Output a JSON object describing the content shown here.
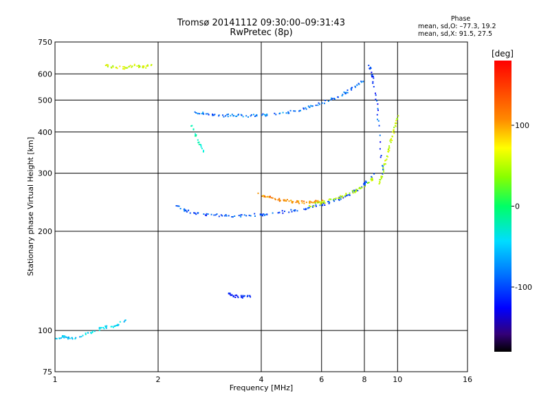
{
  "header": {
    "title_line1": "Tromsø 20141112 09:30:00–09:31:43",
    "title_line2": "RwPretec (8p)",
    "phase_label": "Phase",
    "phase_o": "mean, sd,O: –77.3, 19.2",
    "phase_x": "mean, sd,X:  91.5, 27.5"
  },
  "chart_data": {
    "type": "scatter",
    "xlabel": "Frequency [MHz]",
    "ylabel": "Stationary phase Virtual Height [km]",
    "x_scale": "log",
    "y_scale": "log",
    "xlim": [
      1,
      16
    ],
    "ylim": [
      75,
      750
    ],
    "x_ticks": [
      1,
      2,
      4,
      6,
      8,
      10,
      16
    ],
    "y_ticks": [
      75,
      100,
      200,
      300,
      400,
      500,
      600,
      750
    ],
    "grid": true,
    "colorbar": {
      "label": "[deg]",
      "min": -180,
      "max": 180,
      "ticks": [
        100,
        0,
        -100
      ]
    },
    "traces": [
      {
        "x": [
          2.55,
          2.75,
          3.0,
          3.3,
          3.6,
          4.0,
          4.5,
          5.0,
          5.5,
          6.0,
          6.5,
          7.0,
          7.5,
          7.9
        ],
        "y": [
          462,
          456,
          452,
          450,
          450,
          452,
          457,
          465,
          478,
          492,
          508,
          528,
          550,
          572
        ],
        "phase": -85
      },
      {
        "x": [
          2.25,
          2.4,
          2.6,
          2.9,
          3.2,
          3.6,
          4.0,
          4.5,
          5.0,
          5.5,
          6.0,
          6.5,
          7.0,
          7.5,
          8.0,
          8.5
        ],
        "y": [
          240,
          232,
          228,
          225,
          224,
          224,
          226,
          229,
          233,
          237,
          242,
          248,
          256,
          266,
          280,
          300
        ],
        "phase": -95
      },
      {
        "x": [
          3.9,
          4.2,
          4.5,
          4.8,
          5.1,
          5.4,
          5.7,
          6.0
        ],
        "y": [
          262,
          255,
          250,
          248,
          246,
          246,
          247,
          249
        ],
        "phase": 135
      },
      {
        "x": [
          5.5,
          6.0,
          6.5,
          7.0,
          7.5,
          8.0,
          8.4
        ],
        "y": [
          240,
          245,
          252,
          258,
          266,
          275,
          290
        ],
        "phase": 85
      },
      {
        "x": [
          8.8,
          9.0,
          9.2,
          9.4,
          9.6,
          9.8,
          10.0
        ],
        "y": [
          280,
          300,
          330,
          360,
          390,
          420,
          450
        ],
        "phase": 90
      },
      {
        "x": [
          8.2,
          8.4,
          8.6,
          8.8,
          9.0
        ],
        "y": [
          640,
          600,
          520,
          420,
          300
        ],
        "phase": -100
      },
      {
        "x": [
          1.4,
          1.5,
          1.6,
          1.7,
          1.8,
          1.9
        ],
        "y": [
          640,
          630,
          630,
          640,
          630,
          640
        ],
        "phase": 95
      },
      {
        "x": [
          2.5,
          2.6,
          2.7
        ],
        "y": [
          420,
          380,
          350
        ],
        "phase": -30
      },
      {
        "x": [
          3.2,
          3.3,
          3.5,
          3.7
        ],
        "y": [
          130,
          128,
          127,
          127
        ],
        "phase": -110
      },
      {
        "x": [
          1.0,
          1.05,
          1.1,
          1.2,
          1.3,
          1.4,
          1.5,
          1.6
        ],
        "y": [
          95,
          96,
          95,
          97,
          100,
          103,
          104,
          108
        ],
        "phase": -55
      }
    ]
  }
}
